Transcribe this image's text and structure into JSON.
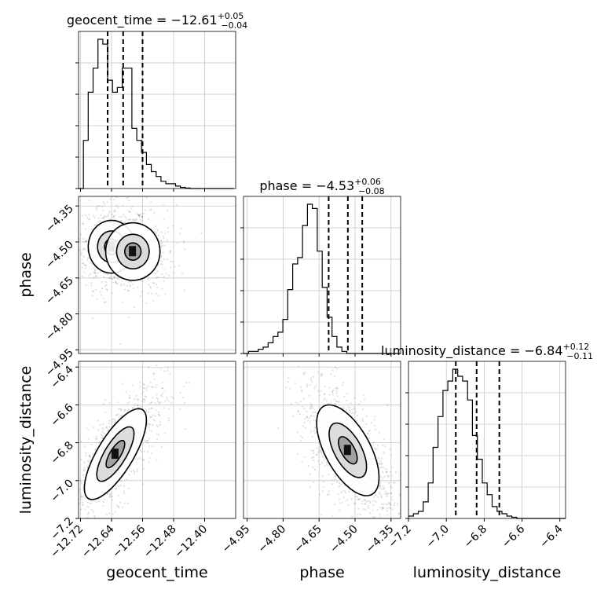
{
  "chart_data": {
    "type": "corner",
    "parameters": [
      "geocent_time",
      "phase",
      "luminosity_distance"
    ],
    "titles": {
      "geocent_time": {
        "name": "geocent_time",
        "median": "−12.61",
        "plus": "+0.05",
        "minus": "−0.04"
      },
      "phase": {
        "name": "phase",
        "median": "−4.53",
        "plus": "+0.06",
        "minus": "−0.08"
      },
      "luminosity_distance": {
        "name": "luminosity_distance",
        "median": "−6.84",
        "plus": "+0.12",
        "minus": "−0.11"
      }
    },
    "axis_labels": {
      "geocent_time": "geocent_time",
      "phase": "phase",
      "luminosity_distance": "luminosity_distance"
    },
    "ranges": {
      "geocent_time": [
        -12.725,
        -12.32
      ],
      "phase": [
        -4.965,
        -4.31
      ],
      "luminosity_distance": [
        -7.2,
        -6.37
      ]
    },
    "ticks": {
      "geocent_time": [
        {
          "v": -12.72,
          "label": "−12.72"
        },
        {
          "v": -12.64,
          "label": "−12.64"
        },
        {
          "v": -12.56,
          "label": "−12.56"
        },
        {
          "v": -12.48,
          "label": "−12.48"
        },
        {
          "v": -12.4,
          "label": "−12.40"
        }
      ],
      "phase": [
        {
          "v": -4.95,
          "label": "−4.95"
        },
        {
          "v": -4.8,
          "label": "−4.80"
        },
        {
          "v": -4.65,
          "label": "−4.65"
        },
        {
          "v": -4.5,
          "label": "−4.50"
        },
        {
          "v": -4.35,
          "label": "−4.35"
        }
      ],
      "luminosity_distance": [
        {
          "v": -7.2,
          "label": "−7.2"
        },
        {
          "v": -7.0,
          "label": "−7.0"
        },
        {
          "v": -6.8,
          "label": "−6.8"
        },
        {
          "v": -6.6,
          "label": "−6.6"
        },
        {
          "v": -6.4,
          "label": "−6.4"
        }
      ]
    },
    "quantiles": {
      "geocent_time": [
        -12.65,
        -12.61,
        -12.56
      ],
      "phase": [
        -4.61,
        -4.53,
        -4.47
      ],
      "luminosity_distance": [
        -6.95,
        -6.84,
        -6.72
      ]
    },
    "histograms": {
      "geocent_time": {
        "edges_start": -12.725,
        "bin_width": 0.0125,
        "counts": [
          0,
          2.0,
          4.0,
          5.0,
          6.2,
          6.0,
          4.5,
          4.0,
          4.2,
          5.0,
          5.0,
          2.5,
          2.0,
          1.5,
          1.0,
          0.7,
          0.5,
          0.3,
          0.2,
          0.2,
          0.1,
          0.05,
          0.02,
          0,
          0,
          0,
          0,
          0,
          0,
          0,
          0,
          0
        ]
      },
      "phase": {
        "edges_start": -4.965,
        "bin_width": 0.0205,
        "counts": [
          0,
          0.1,
          0.1,
          0.2,
          0.3,
          0.5,
          0.8,
          1.0,
          1.6,
          3.0,
          4.2,
          4.5,
          6.0,
          7.0,
          6.8,
          4.8,
          3.1,
          1.7,
          0.8,
          0.3,
          0.1,
          0,
          0,
          0,
          0,
          0,
          0,
          0,
          0,
          0,
          0,
          0
        ]
      },
      "luminosity_distance": {
        "edges_start": -7.2,
        "bin_width": 0.026,
        "counts": [
          0.1,
          0.2,
          0.3,
          0.7,
          1.5,
          3.0,
          4.3,
          5.4,
          5.8,
          6.3,
          6.0,
          5.8,
          5.0,
          3.5,
          2.5,
          1.5,
          1.0,
          0.5,
          0.3,
          0.2,
          0.1,
          0.05,
          0,
          0,
          0,
          0,
          0,
          0,
          0,
          0,
          0,
          0
        ]
      }
    },
    "joint": [
      {
        "x": "geocent_time",
        "y": "phase",
        "clusters": [
          {
            "cx": -12.64,
            "cy": -4.52,
            "sx": 0.03,
            "sy": 0.055,
            "rho": 0.0,
            "w": 0.55
          },
          {
            "cx": -12.585,
            "cy": -4.54,
            "sx": 0.035,
            "sy": 0.06,
            "rho": 0.0,
            "w": 0.45
          }
        ]
      },
      {
        "x": "geocent_time",
        "y": "luminosity_distance",
        "clusters": [
          {
            "cx": -12.63,
            "cy": -6.86,
            "sx": 0.04,
            "sy": 0.12,
            "rho": 0.75,
            "w": 1.0
          }
        ]
      },
      {
        "x": "phase",
        "y": "luminosity_distance",
        "clusters": [
          {
            "cx": -4.53,
            "cy": -6.84,
            "sx": 0.065,
            "sy": 0.12,
            "rho": -0.6,
            "w": 1.0
          }
        ]
      }
    ]
  }
}
